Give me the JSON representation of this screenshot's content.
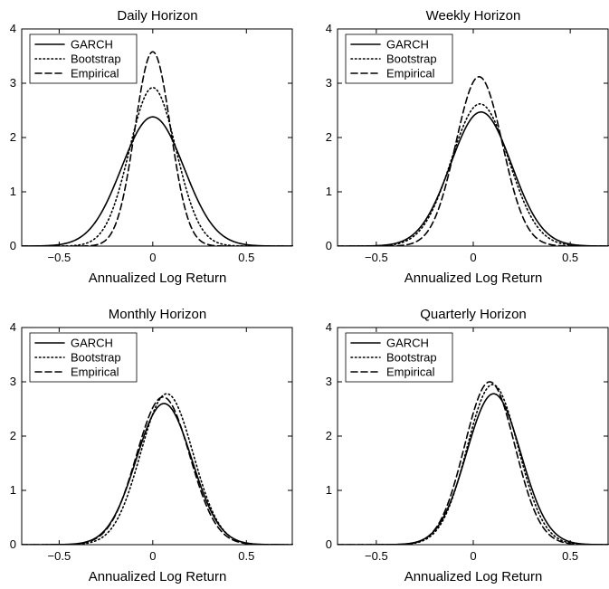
{
  "chart_data": [
    {
      "type": "line",
      "title": "Daily Horizon",
      "xlabel": "Annualized Log Return",
      "ylabel": "",
      "xlim": [
        -0.7,
        0.75
      ],
      "ylim": [
        0,
        4
      ],
      "xticks": [
        -0.5,
        0,
        0.5
      ],
      "xtick_labels": [
        "−0.5",
        "0",
        "0.5"
      ],
      "yticks": [
        0,
        1,
        2,
        3,
        4
      ],
      "ytick_labels": [
        "0",
        "1",
        "2",
        "3",
        "4"
      ],
      "legend": "top-left",
      "grid": false,
      "series": [
        {
          "name": "GARCH",
          "style": "solid",
          "mean": 0.0,
          "sd": 0.167,
          "peak": 2.38
        },
        {
          "name": "Bootstrap",
          "style": "dotted",
          "mean": 0.0,
          "sd": 0.125,
          "peak": 2.92
        },
        {
          "name": "Empirical",
          "style": "dashed",
          "mean": 0.0,
          "sd": 0.095,
          "peak": 3.58
        }
      ]
    },
    {
      "type": "line",
      "title": "Weekly Horizon",
      "xlabel": "Annualized Log Return",
      "ylabel": "",
      "xlim": [
        -0.7,
        0.7
      ],
      "ylim": [
        0,
        4
      ],
      "xticks": [
        -0.5,
        0,
        0.5
      ],
      "xtick_labels": [
        "−0.5",
        "0",
        "0.5"
      ],
      "yticks": [
        0,
        1,
        2,
        3,
        4
      ],
      "ytick_labels": [
        "0",
        "1",
        "2",
        "3",
        "4"
      ],
      "legend": "top-left",
      "grid": false,
      "series": [
        {
          "name": "GARCH",
          "style": "solid",
          "mean": 0.04,
          "sd": 0.158,
          "peak": 2.47
        },
        {
          "name": "Bootstrap",
          "style": "dotted",
          "mean": 0.035,
          "sd": 0.148,
          "peak": 2.62
        },
        {
          "name": "Empirical",
          "style": "dashed",
          "mean": 0.03,
          "sd": 0.12,
          "peak": 3.12
        }
      ]
    },
    {
      "type": "line",
      "title": "Monthly Horizon",
      "xlabel": "Annualized Log Return",
      "ylabel": "",
      "xlim": [
        -0.7,
        0.75
      ],
      "ylim": [
        0,
        4
      ],
      "xticks": [
        -0.5,
        0,
        0.5
      ],
      "xtick_labels": [
        "−0.5",
        "0",
        "0.5"
      ],
      "yticks": [
        0,
        1,
        2,
        3,
        4
      ],
      "ytick_labels": [
        "0",
        "1",
        "2",
        "3",
        "4"
      ],
      "legend": "top-left",
      "grid": false,
      "series": [
        {
          "name": "GARCH",
          "style": "solid",
          "mean": 0.06,
          "sd": 0.148,
          "peak": 2.6
        },
        {
          "name": "Bootstrap",
          "style": "dotted",
          "mean": 0.075,
          "sd": 0.14,
          "peak": 2.78
        },
        {
          "name": "Empirical",
          "style": "dashed",
          "mean": 0.055,
          "sd": 0.142,
          "peak": 2.72
        }
      ]
    },
    {
      "type": "line",
      "title": "Quarterly Horizon",
      "xlabel": "Annualized Log Return",
      "ylabel": "",
      "xlim": [
        -0.7,
        0.7
      ],
      "ylim": [
        0,
        4
      ],
      "xticks": [
        -0.5,
        0,
        0.5
      ],
      "xtick_labels": [
        "−0.5",
        "0",
        "0.5"
      ],
      "yticks": [
        0,
        1,
        2,
        3,
        4
      ],
      "ytick_labels": [
        "0",
        "1",
        "2",
        "3",
        "4"
      ],
      "legend": "top-left",
      "grid": false,
      "series": [
        {
          "name": "GARCH",
          "style": "solid",
          "mean": 0.105,
          "sd": 0.14,
          "peak": 2.78
        },
        {
          "name": "Bootstrap",
          "style": "dotted",
          "mean": 0.1,
          "sd": 0.132,
          "peak": 2.95
        },
        {
          "name": "Empirical",
          "style": "dashed",
          "mean": 0.085,
          "sd": 0.13,
          "peak": 3.0
        }
      ]
    }
  ]
}
